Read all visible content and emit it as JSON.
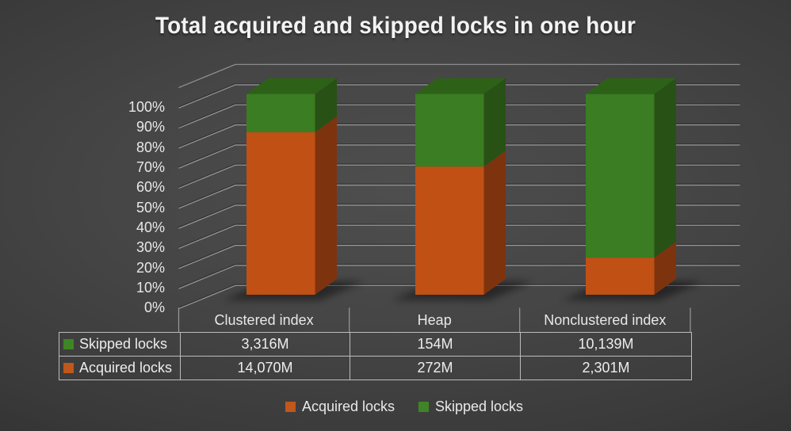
{
  "title": "Total acquired and skipped locks in one hour",
  "chart_data": {
    "type": "bar",
    "subtype": "3d-100-percent-stacked-column",
    "title": "Total acquired and skipped locks in one hour",
    "categories": [
      "Clustered index",
      "Heap",
      "Nonclustered index"
    ],
    "series": [
      {
        "name": "Acquired locks",
        "values_millions": [
          14070,
          272,
          2301
        ],
        "labels": [
          "14,070M",
          "272M",
          "2,301M"
        ],
        "color": "#c05014"
      },
      {
        "name": "Skipped locks",
        "values_millions": [
          3316,
          154,
          10139
        ],
        "labels": [
          "3,316M",
          "154M",
          "10,139M"
        ],
        "color": "#3a7d22"
      }
    ],
    "stack_order_bottom_to_top": [
      "Acquired locks",
      "Skipped locks"
    ],
    "y_axis": {
      "min": 0,
      "max": 100,
      "format": "percent",
      "ticks": [
        "0%",
        "10%",
        "20%",
        "30%",
        "40%",
        "50%",
        "60%",
        "70%",
        "80%",
        "90%",
        "100%"
      ]
    },
    "grid": true,
    "legend_position": "bottom"
  },
  "table": {
    "rows": [
      {
        "label": "Skipped locks",
        "color": "#3f8526",
        "values": [
          "3,316M",
          "154M",
          "10,139M"
        ]
      },
      {
        "label": "Acquired locks",
        "color": "#c0571c",
        "values": [
          "14,070M",
          "272M",
          "2,301M"
        ]
      }
    ]
  },
  "legend": {
    "items": [
      {
        "label": "Acquired locks",
        "color": "#c0571c"
      },
      {
        "label": "Skipped locks",
        "color": "#3f8526"
      }
    ]
  },
  "colors": {
    "acquired_front": "#c05014",
    "acquired_side": "#7e330f",
    "skipped_front": "#3a7d22",
    "skipped_side": "#285116",
    "skipped_top": "#2e6118",
    "gridline_light": "#a8a8a8",
    "gridline_dark": "#1e1e1e",
    "table_border": "#bcbcbc",
    "axis_text": "#e8e8e8",
    "title_text": "#f3f3f3",
    "background_center": "#4e4e4e",
    "background_edge": "#1d1d1d"
  }
}
